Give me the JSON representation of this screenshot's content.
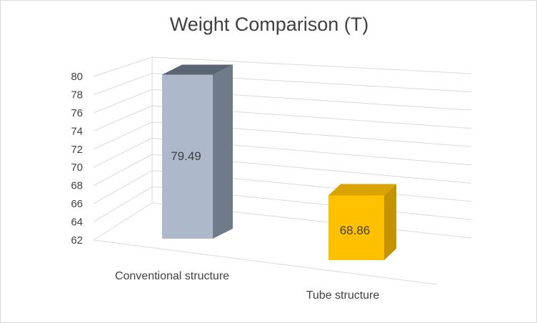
{
  "chart_data": {
    "type": "bar",
    "title": "Weight Comparison (T)",
    "categories": [
      "Conventional structure",
      "Tube structure"
    ],
    "values": [
      79.49,
      68.86
    ],
    "data_labels": [
      "79.49",
      "68.86"
    ],
    "ylim": [
      62,
      80
    ],
    "yticks": [
      "62",
      "64",
      "66",
      "68",
      "70",
      "72",
      "74",
      "76",
      "78",
      "80"
    ],
    "grid": true,
    "legend": "none",
    "colors": {
      "bar_1_front": "#adb9ca",
      "bar_1_side": "#6f7b8b",
      "bar_1_top": "#5a6472",
      "bar_2_front": "#ffc000",
      "bar_2_side": "#c49400",
      "bar_2_top": "#d9a300"
    }
  }
}
